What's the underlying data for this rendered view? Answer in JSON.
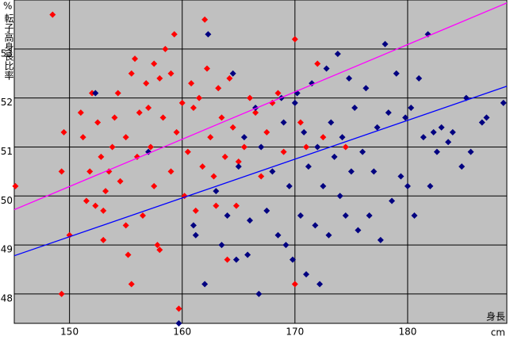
{
  "chart_data": {
    "type": "scatter",
    "y_unit": "%",
    "y_label": "転子高身長比率",
    "x_label": "身長",
    "x_unit": "cm",
    "xlim": [
      145.1,
      188.8
    ],
    "ylim": [
      47.4,
      54.0
    ],
    "xticks": [
      150,
      160,
      170,
      180
    ],
    "yticks": [
      48,
      49,
      50,
      51,
      52,
      53
    ],
    "grid": true,
    "background": "#c0c0c0",
    "series": [
      {
        "color": "#ff0000",
        "x": [
          145.2,
          148.5,
          149.3,
          149.5,
          149.3,
          150,
          151,
          151.2,
          151.5,
          151.8,
          152,
          152.3,
          152.5,
          152.8,
          153,
          153.2,
          153,
          153.5,
          153.8,
          154,
          154.3,
          154.5,
          155,
          155,
          155.2,
          155.5,
          155.5,
          155.8,
          156,
          156.2,
          156.5,
          156.8,
          157,
          157.2,
          157.5,
          157.5,
          157.8,
          158,
          158,
          158.3,
          158.5,
          159,
          159,
          159.3,
          159.5,
          159.7,
          160,
          160.2,
          160.5,
          160.8,
          161,
          161.2,
          161.5,
          161.8,
          162,
          162.2,
          162.5,
          162.8,
          163,
          163.2,
          163.5,
          163.8,
          164,
          164.2,
          164.5,
          164.8,
          165,
          165.5,
          166,
          166.5,
          167,
          167.5,
          168,
          168.5,
          169,
          170,
          170,
          170.5,
          171,
          172,
          172.5,
          174.5
        ],
        "values": [
          50.2,
          53.7,
          50.5,
          51.3,
          48.0,
          49.2,
          51.7,
          51.2,
          49.9,
          50.5,
          52.1,
          49.8,
          51.5,
          50.8,
          49.7,
          50.1,
          49.1,
          50.5,
          51.0,
          51.6,
          52.1,
          50.3,
          51.2,
          49.4,
          48.8,
          48.2,
          52.5,
          52.8,
          50.8,
          51.7,
          49.6,
          52.3,
          51.8,
          51.0,
          52.7,
          50.2,
          49.0,
          48.9,
          52.4,
          51.6,
          53.0,
          52.5,
          50.5,
          53.3,
          51.3,
          47.7,
          51.9,
          50.0,
          50.9,
          52.3,
          51.8,
          49.7,
          52.0,
          50.6,
          53.6,
          52.6,
          51.2,
          50.4,
          49.8,
          52.2,
          51.6,
          50.8,
          48.7,
          52.4,
          51.4,
          49.8,
          50.7,
          51.0,
          52.0,
          51.7,
          50.4,
          51.3,
          51.9,
          52.1,
          50.9,
          53.2,
          48.2,
          51.5,
          51.0,
          52.7,
          51.2,
          51.0
        ]
      },
      {
        "color": "#000080",
        "x": [
          152.3,
          157,
          159.7,
          161,
          161.2,
          162,
          162.3,
          163,
          163.5,
          164,
          164.5,
          164.8,
          165,
          165.5,
          165.8,
          166,
          166.5,
          166.8,
          167,
          167.5,
          168,
          168.5,
          168.8,
          169,
          169.2,
          169.5,
          169.8,
          170,
          170.2,
          170.5,
          170.8,
          171,
          171.2,
          171.5,
          171.8,
          172,
          172.2,
          172.5,
          172.8,
          173,
          173.2,
          173.5,
          173.8,
          174,
          174.2,
          174.5,
          174.8,
          175,
          175.3,
          175.6,
          176,
          176.3,
          176.6,
          177,
          177.3,
          177.6,
          178,
          178.3,
          178.6,
          179,
          179.4,
          179.8,
          180,
          180.3,
          180.6,
          181,
          181.4,
          181.8,
          182,
          182.3,
          182.6,
          183,
          183.6,
          184,
          184.8,
          185.2,
          185.6,
          186.6,
          187,
          188.5
        ],
        "values": [
          52.1,
          50.9,
          47.4,
          49.4,
          49.2,
          48.2,
          53.3,
          50.1,
          49.0,
          49.6,
          52.5,
          48.7,
          50.6,
          51.2,
          48.8,
          49.5,
          51.8,
          48.0,
          51.0,
          49.7,
          50.5,
          49.2,
          52.0,
          51.5,
          49.0,
          50.2,
          48.7,
          51.9,
          52.1,
          49.6,
          51.3,
          48.4,
          50.6,
          52.3,
          49.4,
          51.0,
          48.2,
          50.2,
          52.6,
          49.2,
          51.5,
          50.8,
          52.9,
          50.0,
          51.2,
          49.6,
          52.4,
          50.5,
          51.8,
          49.3,
          50.9,
          52.2,
          49.6,
          50.5,
          51.4,
          49.1,
          53.1,
          51.7,
          49.9,
          52.5,
          50.4,
          51.6,
          50.2,
          51.8,
          49.6,
          52.4,
          51.2,
          53.3,
          50.2,
          51.3,
          50.9,
          51.4,
          51.1,
          51.3,
          50.6,
          52.0,
          50.9,
          51.5,
          51.6,
          51.9
        ]
      }
    ],
    "lines": [
      {
        "color": "#ff00ff",
        "x": [
          145.1,
          188.8
        ],
        "values": [
          49.72,
          53.94
        ]
      },
      {
        "color": "#0000ff",
        "x": [
          145.1,
          188.8
        ],
        "values": [
          48.78,
          52.24
        ]
      }
    ]
  }
}
